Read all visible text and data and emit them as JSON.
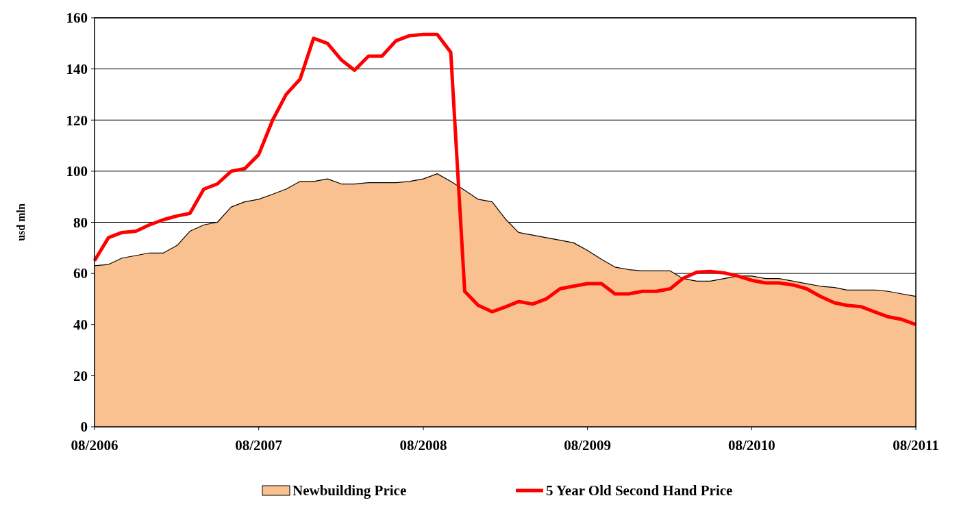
{
  "chart_data": {
    "type": "area",
    "ylabel": "usd mln",
    "x": [
      "2006-08",
      "2006-09",
      "2006-10",
      "2006-11",
      "2006-12",
      "2007-01",
      "2007-02",
      "2007-03",
      "2007-04",
      "2007-05",
      "2007-06",
      "2007-07",
      "2007-08",
      "2007-09",
      "2007-10",
      "2007-11",
      "2007-12",
      "2008-01",
      "2008-02",
      "2008-03",
      "2008-04",
      "2008-05",
      "2008-06",
      "2008-07",
      "2008-08",
      "2008-09",
      "2008-10",
      "2008-11",
      "2008-12",
      "2009-01",
      "2009-02",
      "2009-03",
      "2009-04",
      "2009-05",
      "2009-06",
      "2009-07",
      "2009-08",
      "2009-09",
      "2009-10",
      "2009-11",
      "2009-12",
      "2010-01",
      "2010-02",
      "2010-03",
      "2010-04",
      "2010-05",
      "2010-06",
      "2010-07",
      "2010-08",
      "2010-09",
      "2010-10",
      "2010-11",
      "2010-12",
      "2011-01",
      "2011-02",
      "2011-03",
      "2011-04",
      "2011-05",
      "2011-06",
      "2011-07",
      "2011-08"
    ],
    "series": [
      {
        "name": "Newbuilding Price",
        "color": "#f9c090",
        "values": [
          63,
          63.5,
          66,
          67,
          68,
          68,
          71,
          76.5,
          79,
          80,
          86,
          88,
          89,
          91,
          93,
          96,
          96,
          97,
          95,
          95,
          95.5,
          95.5,
          95.5,
          96,
          97,
          99,
          96,
          92.5,
          89,
          88,
          81,
          76,
          75,
          74,
          73,
          72,
          69,
          65.5,
          62.5,
          61.5,
          61,
          61,
          61,
          58,
          57,
          57,
          58,
          59,
          59,
          58,
          58,
          57,
          56,
          55,
          54.5,
          53.5,
          53.5,
          53.5,
          53,
          52,
          51
        ]
      },
      {
        "name": "5 Year Old Second Hand Price",
        "type": "line",
        "color": "#ff0000",
        "values": [
          65,
          74,
          76,
          76.5,
          79,
          81,
          82.5,
          83.5,
          93,
          95,
          100,
          101,
          106.5,
          120,
          130,
          136,
          152,
          150,
          143.5,
          139.5,
          145,
          145,
          151,
          153,
          153.5,
          153.5,
          146.5,
          53,
          47.5,
          45,
          47,
          49,
          48,
          50,
          54,
          55,
          56,
          56,
          52,
          52,
          53,
          53,
          54,
          58,
          60.5,
          60.8,
          60.2,
          59,
          57.3,
          56.3,
          56.3,
          55.5,
          54,
          51,
          48.5,
          47.5,
          47,
          45,
          43,
          42,
          40
        ]
      }
    ],
    "xlim": [
      "2006-08",
      "2011-08"
    ],
    "xticks": [
      {
        "value": "2006-08",
        "label": "08/2006"
      },
      {
        "value": "2007-08",
        "label": "08/2007"
      },
      {
        "value": "2008-08",
        "label": "08/2008"
      },
      {
        "value": "2009-08",
        "label": "08/2009"
      },
      {
        "value": "2010-08",
        "label": "08/2010"
      },
      {
        "value": "2011-08",
        "label": "08/2011"
      }
    ],
    "ylim": [
      0,
      160
    ],
    "yticks": [
      0,
      20,
      40,
      60,
      80,
      100,
      120,
      140,
      160
    ],
    "grid": "y",
    "legend": "bottom",
    "line_style": "solid",
    "marker": "none"
  }
}
